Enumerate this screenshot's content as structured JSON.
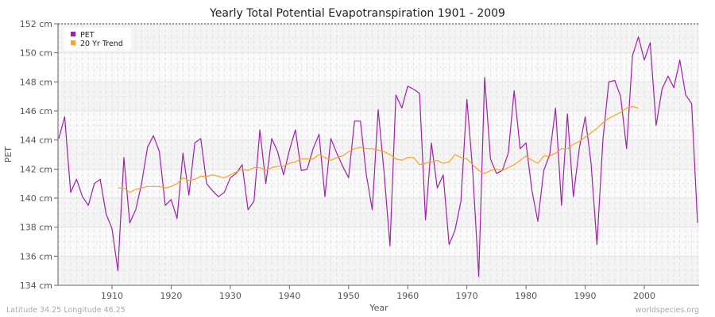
{
  "chart_data": {
    "type": "line",
    "title": "Yearly Total Potential Evapotranspiration 1901 - 2009",
    "xlabel": "Year",
    "ylabel": "PET",
    "xlim": [
      1901,
      2009
    ],
    "ylim": [
      134,
      152
    ],
    "x_ticks": [
      1910,
      1920,
      1930,
      1940,
      1950,
      1960,
      1970,
      1980,
      1990,
      2000
    ],
    "y_ticks": [
      "134 cm",
      "136 cm",
      "138 cm",
      "140 cm",
      "142 cm",
      "144 cm",
      "146 cm",
      "148 cm",
      "150 cm",
      "152 cm"
    ],
    "y_tick_values": [
      134,
      136,
      138,
      140,
      142,
      144,
      146,
      148,
      150,
      152
    ],
    "grid": true,
    "legend_placement": "top-left",
    "series": [
      {
        "name": "PET",
        "color": "#a020a8",
        "x_start": 1901,
        "values": [
          144.1,
          145.6,
          140.4,
          141.3,
          140.1,
          139.5,
          141.0,
          141.3,
          138.9,
          137.9,
          135.0,
          142.8,
          138.3,
          139.2,
          141.0,
          143.5,
          144.3,
          143.2,
          139.5,
          139.9,
          138.6,
          143.1,
          140.2,
          143.8,
          144.1,
          141.0,
          140.5,
          140.1,
          140.4,
          141.4,
          141.7,
          142.3,
          139.2,
          139.8,
          144.7,
          141.0,
          144.1,
          143.2,
          141.6,
          143.3,
          144.7,
          141.9,
          142.0,
          143.4,
          144.4,
          140.1,
          144.1,
          143.1,
          142.2,
          141.4,
          145.3,
          145.3,
          141.6,
          139.2,
          146.1,
          141.8,
          136.7,
          147.1,
          146.2,
          147.7,
          147.5,
          147.2,
          138.5,
          143.8,
          140.7,
          141.6,
          136.8,
          137.8,
          139.8,
          146.8,
          141.8,
          134.6,
          148.3,
          142.7,
          141.7,
          141.9,
          143.1,
          147.4,
          143.4,
          143.8,
          140.5,
          138.4,
          141.9,
          143.0,
          146.2,
          139.5,
          145.8,
          140.1,
          143.4,
          145.6,
          142.4,
          136.8,
          144.0,
          148.0,
          148.1,
          147.0,
          143.4,
          149.8,
          151.1,
          149.5,
          150.7,
          145.0,
          147.5,
          148.4,
          147.6,
          149.5,
          147.1,
          146.5,
          138.3
        ]
      },
      {
        "name": "20 Yr Trend",
        "color": "#ffa31a",
        "x_start": 1911,
        "values": [
          140.7,
          140.7,
          140.4,
          140.6,
          140.7,
          140.8,
          140.8,
          140.8,
          140.7,
          140.8,
          141.0,
          141.4,
          141.2,
          141.3,
          141.5,
          141.5,
          141.6,
          141.5,
          141.4,
          141.6,
          141.8,
          142.0,
          141.9,
          142.1,
          142.1,
          141.9,
          142.1,
          142.2,
          142.2,
          142.4,
          142.5,
          142.7,
          142.7,
          142.7,
          143.0,
          142.8,
          142.6,
          142.8,
          142.9,
          143.2,
          143.4,
          143.5,
          143.4,
          143.4,
          143.3,
          143.2,
          143.0,
          142.7,
          142.6,
          142.8,
          142.8,
          142.3,
          142.4,
          142.5,
          142.6,
          142.4,
          142.5,
          143.0,
          142.8,
          142.7,
          142.3,
          141.9,
          141.7,
          141.9,
          142.0,
          141.9,
          142.1,
          142.3,
          142.6,
          142.9,
          142.6,
          142.4,
          142.9,
          142.9,
          143.1,
          143.4,
          143.4,
          143.7,
          143.9,
          144.2,
          144.5,
          144.8,
          145.2,
          145.5,
          145.7,
          145.9,
          146.2,
          146.3,
          146.2
        ]
      }
    ]
  },
  "footer": {
    "location": "Latitude 34.25 Longitude 46.25",
    "source": "worldspecies.org"
  }
}
